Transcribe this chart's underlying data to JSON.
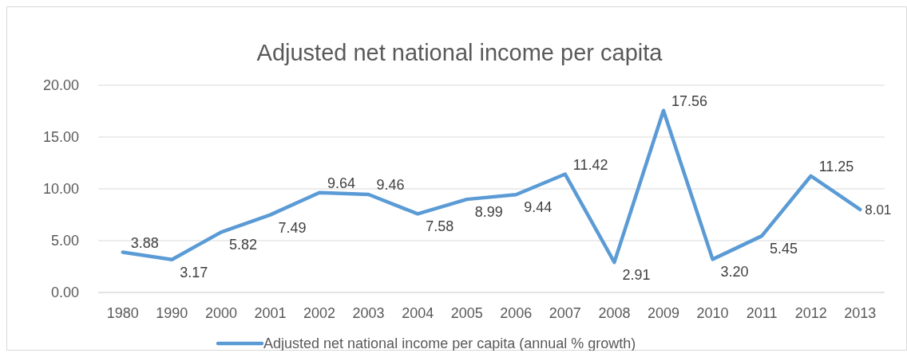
{
  "chart_data": {
    "type": "line",
    "title": "Adjusted net national income per capita",
    "categories": [
      "1980",
      "1990",
      "2000",
      "2001",
      "2002",
      "2003",
      "2004",
      "2005",
      "2006",
      "2007",
      "2008",
      "2009",
      "2010",
      "2011",
      "2012",
      "2013"
    ],
    "series": [
      {
        "name": "Adjusted net national income per capita (annual % growth)",
        "color": "#5b9bd5",
        "values": [
          3.88,
          3.17,
          5.82,
          7.49,
          9.64,
          9.46,
          7.58,
          8.99,
          9.44,
          11.42,
          2.91,
          17.56,
          3.2,
          5.45,
          11.25,
          8.01
        ],
        "value_labels": [
          "3.88",
          "3.17",
          "5.82",
          "7.49",
          "9.64",
          "9.46",
          "7.58",
          "8.99",
          "9.44",
          "11.42",
          "2.91",
          "17.56",
          "3.20",
          "5.45",
          "11.25",
          "8.01"
        ]
      }
    ],
    "ylim": [
      0,
      20
    ],
    "yticks": [
      {
        "value": 0,
        "label": "0.00"
      },
      {
        "value": 5,
        "label": "5.00"
      },
      {
        "value": 10,
        "label": "10.00"
      },
      {
        "value": 15,
        "label": "15.00"
      },
      {
        "value": 20,
        "label": "20.00"
      }
    ],
    "grid": "y",
    "legend": "bottom",
    "marker": "none",
    "line_style": "solid"
  }
}
